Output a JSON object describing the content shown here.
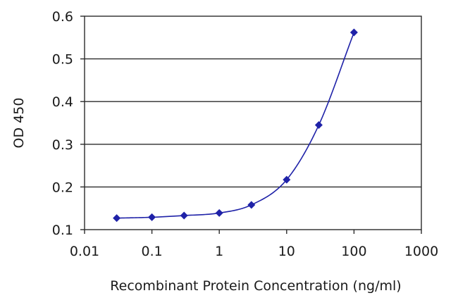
{
  "chart_data": {
    "type": "scatter",
    "title": "",
    "xlabel": "Recombinant Protein Concentration (ng/ml)",
    "ylabel": "OD 450",
    "xscale": "log",
    "xlim": [
      0.01,
      1000
    ],
    "ylim": [
      0.1,
      0.6
    ],
    "xticks": [
      "0.01",
      "0.1",
      "1",
      "10",
      "100",
      "1000"
    ],
    "yticks": [
      "0.1",
      "0.2",
      "0.3",
      "0.4",
      "0.5",
      "0.6"
    ],
    "grid": "horizontal",
    "legend": "none",
    "series": [
      {
        "x": [
          0.03,
          0.1,
          0.3,
          1,
          3,
          10,
          30,
          100
        ],
        "y": [
          0.127,
          0.129,
          0.133,
          0.139,
          0.158,
          0.217,
          0.345,
          0.562
        ],
        "marker": "diamond",
        "fitted_curve": true
      }
    ],
    "colors": {
      "series": "#1f22a8",
      "frame": "#2b2b2b"
    }
  }
}
